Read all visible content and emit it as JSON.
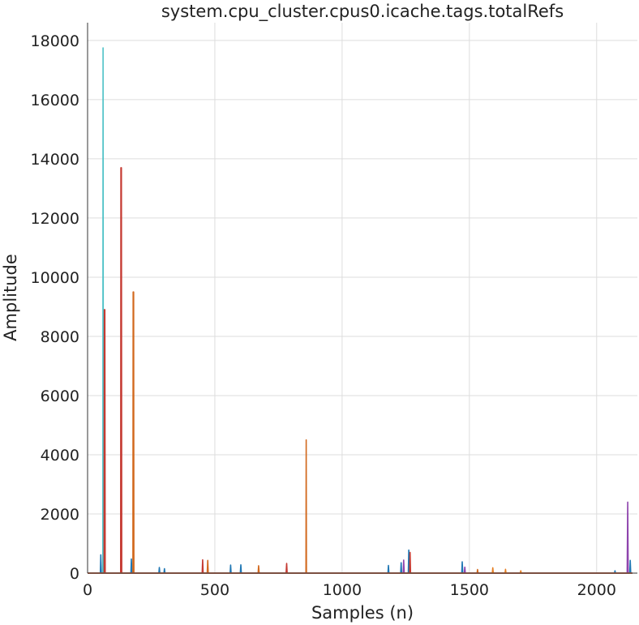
{
  "chart_data": {
    "type": "line",
    "title": "system.cpu_cluster.cpus0.icache.tags.totalRefs",
    "xlabel": "Samples (n)",
    "ylabel": "Amplitude",
    "xlim": [
      0,
      2160
    ],
    "ylim": [
      0,
      18600
    ],
    "x_ticks": [
      0,
      500,
      1000,
      1500,
      2000
    ],
    "y_ticks": [
      0,
      2000,
      4000,
      6000,
      8000,
      10000,
      12000,
      14000,
      16000,
      18000
    ],
    "grid": true,
    "legend": "none",
    "series": [
      {
        "color": "#1f77b4",
        "points": [
          [
            0,
            0
          ],
          [
            50,
            0
          ],
          [
            52,
            620
          ],
          [
            54,
            0
          ],
          [
            170,
            0
          ],
          [
            172,
            480
          ],
          [
            174,
            0
          ],
          [
            280,
            0
          ],
          [
            282,
            190
          ],
          [
            284,
            0
          ],
          [
            300,
            0
          ],
          [
            302,
            150
          ],
          [
            304,
            0
          ],
          [
            560,
            0
          ],
          [
            562,
            270
          ],
          [
            564,
            0
          ],
          [
            600,
            0
          ],
          [
            602,
            280
          ],
          [
            604,
            0
          ],
          [
            1180,
            0
          ],
          [
            1182,
            260
          ],
          [
            1184,
            0
          ],
          [
            1230,
            0
          ],
          [
            1232,
            350
          ],
          [
            1234,
            0
          ],
          [
            1260,
            0
          ],
          [
            1262,
            780
          ],
          [
            1264,
            0
          ],
          [
            1470,
            0
          ],
          [
            1472,
            380
          ],
          [
            1474,
            0
          ],
          [
            2070,
            0
          ],
          [
            2072,
            80
          ],
          [
            2074,
            0
          ],
          [
            2130,
            0
          ],
          [
            2132,
            430
          ],
          [
            2134,
            0
          ],
          [
            2140,
            0
          ]
        ]
      },
      {
        "color": "#4ec2c7",
        "points": [
          [
            0,
            0
          ],
          [
            60,
            0
          ],
          [
            61,
            17750
          ],
          [
            62,
            0
          ],
          [
            300,
            0
          ],
          [
            2140,
            0
          ]
        ]
      },
      {
        "color": "#c53a32",
        "points": [
          [
            0,
            0
          ],
          [
            65,
            0
          ],
          [
            66,
            8900
          ],
          [
            68,
            8900
          ],
          [
            69,
            0
          ],
          [
            130,
            0
          ],
          [
            131,
            13700
          ],
          [
            133,
            13700
          ],
          [
            134,
            0
          ],
          [
            450,
            0
          ],
          [
            452,
            450
          ],
          [
            454,
            0
          ],
          [
            780,
            0
          ],
          [
            782,
            330
          ],
          [
            784,
            0
          ],
          [
            1265,
            0
          ],
          [
            1267,
            700
          ],
          [
            1269,
            0
          ],
          [
            2140,
            0
          ]
        ]
      },
      {
        "color": "#d2691e",
        "points": [
          [
            0,
            0
          ],
          [
            178,
            0
          ],
          [
            179,
            9500
          ],
          [
            181,
            9500
          ],
          [
            182,
            0
          ],
          [
            470,
            0
          ],
          [
            472,
            430
          ],
          [
            474,
            0
          ],
          [
            670,
            0
          ],
          [
            672,
            250
          ],
          [
            674,
            0
          ],
          [
            858,
            0
          ],
          [
            859,
            4500
          ],
          [
            860,
            0
          ],
          [
            1530,
            0
          ],
          [
            1532,
            120
          ],
          [
            1534,
            0
          ],
          [
            2140,
            0
          ]
        ]
      },
      {
        "color": "#8e44ad",
        "points": [
          [
            0,
            0
          ],
          [
            1240,
            0
          ],
          [
            1242,
            440
          ],
          [
            1244,
            0
          ],
          [
            1480,
            0
          ],
          [
            1482,
            200
          ],
          [
            1484,
            0
          ],
          [
            2120,
            0
          ],
          [
            2122,
            2400
          ],
          [
            2124,
            0
          ],
          [
            2140,
            0
          ]
        ]
      },
      {
        "color": "#e67e22",
        "points": [
          [
            0,
            0
          ],
          [
            1590,
            0
          ],
          [
            1592,
            180
          ],
          [
            1594,
            0
          ],
          [
            1640,
            0
          ],
          [
            1642,
            130
          ],
          [
            1644,
            0
          ],
          [
            1700,
            0
          ],
          [
            1702,
            80
          ],
          [
            1704,
            0
          ],
          [
            2140,
            0
          ]
        ]
      }
    ]
  }
}
